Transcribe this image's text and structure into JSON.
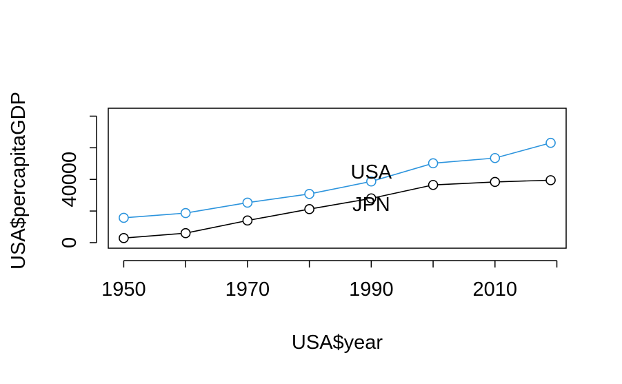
{
  "chart_data": {
    "type": "line",
    "xlabel": "USA$year",
    "ylabel": "USA$percapitaGDP",
    "x": [
      1950,
      1960,
      1970,
      1980,
      1990,
      2000,
      2010,
      2019
    ],
    "xlim": [
      1947.5,
      2021.5
    ],
    "ylim": [
      -3500,
      85000
    ],
    "x_ticks": [
      "1950",
      "1970",
      "1990",
      "2010"
    ],
    "x_tick_values": [
      1950,
      1960,
      1970,
      1980,
      1990,
      2000,
      2010,
      2020
    ],
    "y_ticks": [
      "0",
      "40000"
    ],
    "y_tick_values": [
      0,
      20000,
      40000,
      60000,
      80000
    ],
    "grid": false,
    "series": [
      {
        "name": "USA",
        "color": "#2c94dd",
        "values": [
          15700,
          18700,
          25300,
          30800,
          38700,
          50200,
          53500,
          63100
        ]
      },
      {
        "name": "JPN",
        "color": "#000000",
        "values": [
          2900,
          6000,
          14000,
          21200,
          28000,
          36500,
          38400,
          39500
        ]
      }
    ],
    "annotations": [
      {
        "text": "USA",
        "x": 1990,
        "y": 45000
      },
      {
        "text": "JPN",
        "x": 1990,
        "y": 24500
      }
    ]
  }
}
